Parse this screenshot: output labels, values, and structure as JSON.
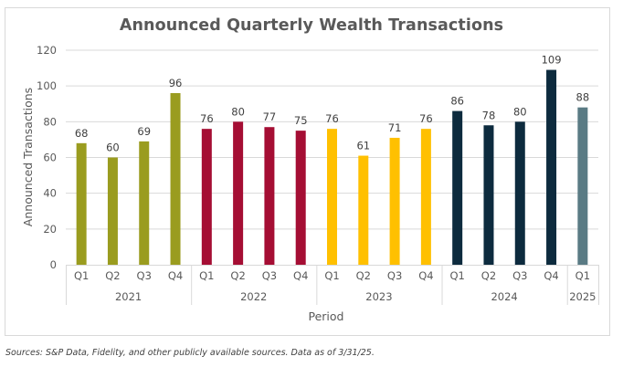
{
  "chart_data": {
    "type": "bar",
    "title": "Announced Quarterly Wealth Transactions",
    "xlabel": "Period",
    "ylabel": "Announced Transactions",
    "ylim": [
      0,
      120
    ],
    "yticks": [
      0,
      20,
      40,
      60,
      80,
      100,
      120
    ],
    "grid": true,
    "legend": "none",
    "categories": [
      "Q1",
      "Q2",
      "Q3",
      "Q4",
      "Q1",
      "Q2",
      "Q3",
      "Q4",
      "Q1",
      "Q2",
      "Q3",
      "Q4",
      "Q1",
      "Q2",
      "Q3",
      "Q4",
      "Q1"
    ],
    "groups": [
      {
        "label": "2021",
        "count": 4,
        "color": "#9a9c1f"
      },
      {
        "label": "2022",
        "count": 4,
        "color": "#a50e34"
      },
      {
        "label": "2023",
        "count": 4,
        "color": "#ffc000"
      },
      {
        "label": "2024",
        "count": 4,
        "color": "#0d2b3e"
      },
      {
        "label": "2025",
        "count": 1,
        "color": "#5a7b84"
      }
    ],
    "series": [
      {
        "name": "Announced Transactions",
        "values": [
          68,
          60,
          69,
          96,
          76,
          80,
          77,
          75,
          76,
          61,
          71,
          76,
          86,
          78,
          80,
          109,
          88
        ]
      }
    ],
    "data_labels": true
  },
  "footer": {
    "source": "Sources: S&P Data, Fidelity, and other publicly available sources. Data as of 3/31/25."
  }
}
